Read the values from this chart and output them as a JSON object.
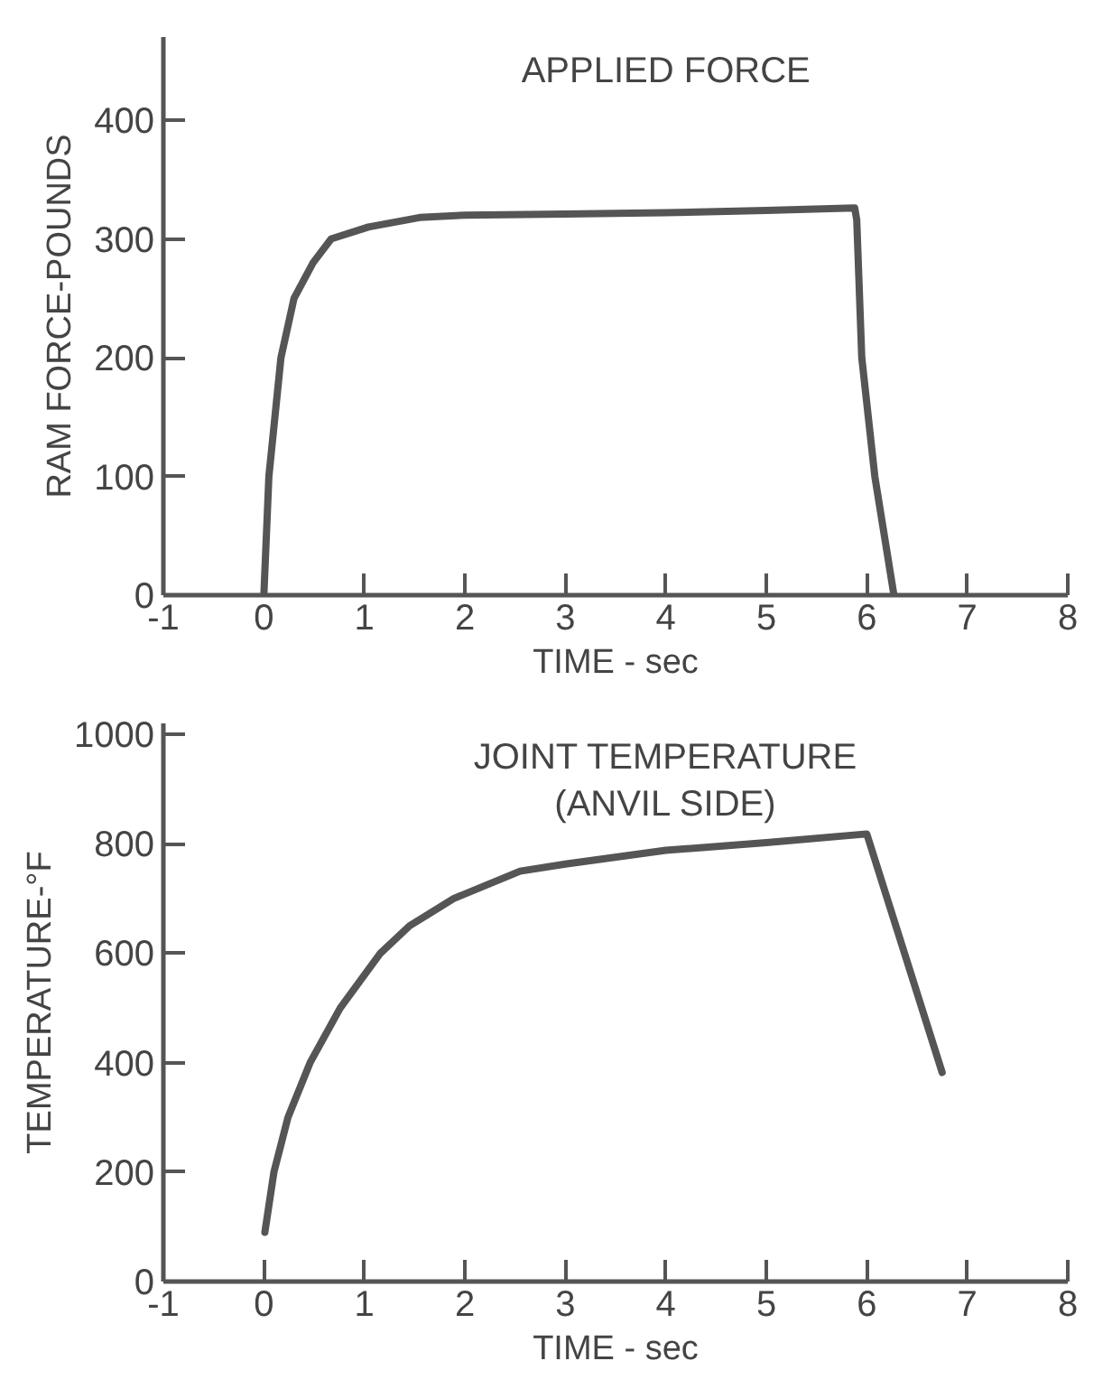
{
  "chart_data": [
    {
      "type": "line",
      "title": "APPLIED FORCE",
      "xlabel": "TIME - sec",
      "ylabel": "RAM FORCE-POUNDS",
      "xlim": [
        -1,
        8
      ],
      "ylim": [
        0,
        470
      ],
      "xticks": [
        -1,
        0,
        1,
        2,
        3,
        4,
        5,
        6,
        7,
        8
      ],
      "yticks": [
        0,
        100,
        200,
        300,
        400
      ],
      "grid": false,
      "marker": "none",
      "line_style": "solid",
      "series": [
        {
          "color": "#555555",
          "x": [
            0,
            0.05,
            0.17,
            0.3,
            0.49,
            0.67,
            1.04,
            1.55,
            2,
            3,
            4,
            5,
            5.88,
            5.9,
            5.95,
            6.08,
            6.27
          ],
          "values": [
            0,
            100,
            200,
            250,
            280,
            300,
            310,
            318,
            320,
            321,
            322,
            324,
            326,
            316,
            200,
            100,
            0
          ]
        }
      ]
    },
    {
      "type": "line",
      "title": "JOINT TEMPERATURE\n(ANVIL SIDE)",
      "xlabel": "TIME - sec",
      "ylabel": "TEMPERATURE-°F",
      "xlim": [
        -1,
        8
      ],
      "ylim": [
        0,
        1020
      ],
      "xticks": [
        -1,
        0,
        1,
        2,
        3,
        4,
        5,
        6,
        7,
        8
      ],
      "yticks": [
        0,
        200,
        400,
        600,
        800,
        1000
      ],
      "grid": false,
      "marker": "none",
      "line_style": "solid",
      "series": [
        {
          "color": "#555555",
          "x": [
            0.01,
            0.1,
            0.24,
            0.46,
            0.76,
            1.16,
            1.45,
            1.89,
            2.55,
            3,
            4,
            5,
            6,
            6.75
          ],
          "values": [
            90,
            200,
            300,
            400,
            500,
            600,
            650,
            700,
            750,
            763,
            788,
            802,
            818,
            382
          ]
        }
      ]
    }
  ]
}
